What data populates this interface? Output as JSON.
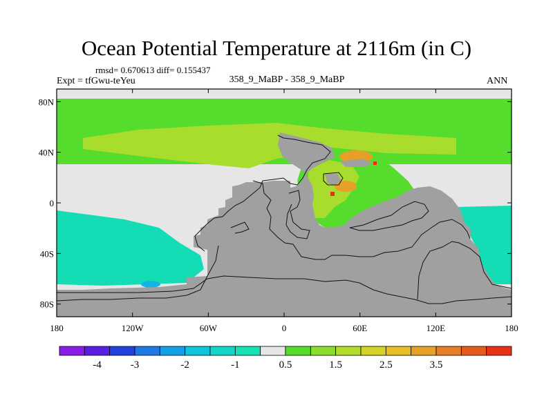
{
  "figure": {
    "title": "Ocean Potential Temperature at 2116m (in C)",
    "stats": "rmsd= 0.670613 diff= 0.155437",
    "expt": "Expt = tfGwu-teYeu",
    "subtitle": "358_9_MaBP - 358_9_MaBP",
    "season": "ANN"
  },
  "axes": {
    "y_ticks": [
      {
        "label": "80N",
        "lat": 80
      },
      {
        "label": "40N",
        "lat": 40
      },
      {
        "label": "0",
        "lat": 0
      },
      {
        "label": "40S",
        "lat": -40
      },
      {
        "label": "80S",
        "lat": -80
      }
    ],
    "x_ticks": [
      {
        "label": "180",
        "lon": -180
      },
      {
        "label": "120W",
        "lon": -120
      },
      {
        "label": "60W",
        "lon": -60
      },
      {
        "label": "0",
        "lon": 0
      },
      {
        "label": "60E",
        "lon": 60
      },
      {
        "label": "120E",
        "lon": 120
      },
      {
        "label": "180",
        "lon": 180
      }
    ],
    "lon_range": [
      -180,
      180
    ],
    "lat_range": [
      -90,
      90
    ]
  },
  "colorbar": {
    "colors": [
      "#8b1ee6",
      "#5a1ee6",
      "#2342dc",
      "#1e78e6",
      "#14a0e6",
      "#12c3dc",
      "#12d7c8",
      "#14e1b4",
      "#e6e6e6",
      "#55dc2d",
      "#8cdc2d",
      "#b4dc2d",
      "#d2d228",
      "#e6be28",
      "#e6a028",
      "#e67d28",
      "#e65a1e",
      "#e63214"
    ],
    "labels": [
      {
        "text": "-4",
        "boundary": 1.5
      },
      {
        "text": "-3",
        "boundary": 3
      },
      {
        "text": "-2",
        "boundary": 5
      },
      {
        "text": "-1",
        "boundary": 7
      },
      {
        "text": "0.5",
        "boundary": 9
      },
      {
        "text": "1.5",
        "boundary": 11
      },
      {
        "text": "2.5",
        "boundary": 13
      },
      {
        "text": "3.5",
        "boundary": 15
      }
    ]
  },
  "colors": {
    "land": "#a0a0a0",
    "neutral": "#e6e6e6",
    "green": "#55dc2d",
    "yellow_green": "#a8dc2d",
    "teal": "#14dcb4",
    "cyan": "#14b4e6",
    "orange": "#e6a028",
    "red": "#e63214"
  }
}
